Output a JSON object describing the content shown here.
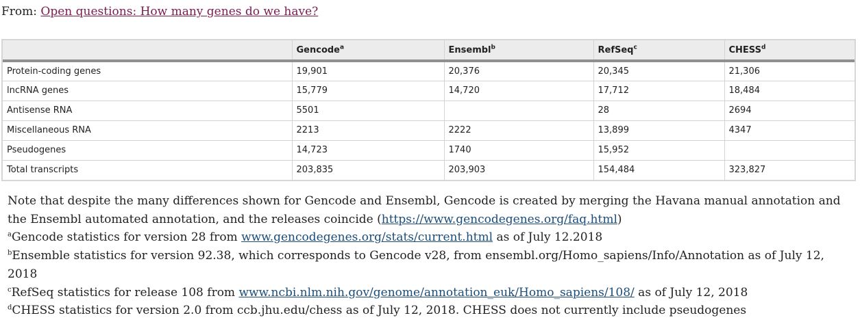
{
  "source": {
    "prefix": "From:",
    "link_text": "Open questions: How many genes do we have?"
  },
  "table": {
    "headers": [
      {
        "label": "",
        "sup": ""
      },
      {
        "label": "Gencode",
        "sup": "a"
      },
      {
        "label": "Ensembl",
        "sup": "b"
      },
      {
        "label": "RefSeq",
        "sup": "c"
      },
      {
        "label": "CHESS",
        "sup": "d"
      }
    ],
    "rows": [
      [
        "Protein-coding genes",
        "19,901",
        "20,376",
        "20,345",
        "21,306"
      ],
      [
        "lncRNA genes",
        "15,779",
        "14,720",
        "17,712",
        "18,484"
      ],
      [
        "Antisense RNA",
        "5501",
        "",
        "28",
        "2694"
      ],
      [
        "Miscellaneous RNA",
        "2213",
        "2222",
        "13,899",
        "4347"
      ],
      [
        "Pseudogenes",
        "14,723",
        "1740",
        "15,952",
        ""
      ],
      [
        "Total transcripts",
        "203,835",
        "203,903",
        "154,484",
        "323,827"
      ]
    ]
  },
  "notes": {
    "main_text": "Note that despite the many differences shown for Gencode and Ensembl, Gencode is created by merging the Havana manual annotation and the Ensembl automated annotation, and the releases coincide (",
    "main_link": "https://www.gencodegenes.org/faq.html",
    "main_end": ")",
    "footnotes": [
      {
        "mark": "a",
        "before": "Gencode statistics for version 28 from ",
        "link": "www.gencodegenes.org/stats/current.html",
        "after": " as of July 12.2018"
      },
      {
        "mark": "b",
        "before": "Ensemble statistics for version 92.38, which corresponds to Gencode v28, from ensembl.org/Homo_sapiens/Info/Annotation as of July 12, 2018",
        "link": "",
        "after": ""
      },
      {
        "mark": "c",
        "before": "RefSeq statistics for release 108 from ",
        "link": "www.ncbi.nlm.nih.gov/genome/annotation_euk/Homo_sapiens/108/",
        "after": " as of July 12, 2018"
      },
      {
        "mark": "d",
        "before": "CHESS statistics for version 2.0 from ccb.jhu.edu/chess as of July 12, 2018. CHESS does not currently include pseudogenes",
        "link": "",
        "after": ""
      }
    ]
  }
}
